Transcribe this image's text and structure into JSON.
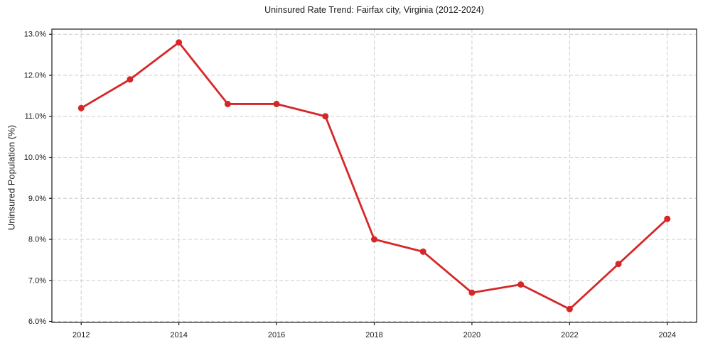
{
  "chart_data": {
    "type": "line",
    "title": "Uninsured Rate Trend: Fairfax city, Virginia (2012-2024)",
    "xlabel": "",
    "ylabel": "Uninsured Population (%)",
    "x": [
      2012,
      2013,
      2014,
      2015,
      2016,
      2017,
      2018,
      2019,
      2020,
      2021,
      2022,
      2023,
      2024
    ],
    "series": [
      {
        "name": "Uninsured Population (%)",
        "values": [
          11.2,
          11.9,
          12.8,
          11.3,
          11.3,
          11.0,
          8.0,
          7.7,
          6.7,
          6.9,
          6.3,
          7.4,
          8.5
        ]
      }
    ],
    "xticks": [
      2012,
      2014,
      2016,
      2018,
      2020,
      2022,
      2024
    ],
    "yticks": [
      6,
      7,
      8,
      9,
      10,
      11,
      12,
      13
    ],
    "ytick_labels": [
      "6.0%",
      "7.0%",
      "8.0%",
      "9.0%",
      "10.0%",
      "11.0%",
      "12.0%",
      "13.0%"
    ],
    "xlim": [
      2011.4,
      2024.6
    ],
    "ylim": [
      5.975,
      13.125
    ],
    "grid": true,
    "grid_style": "dashed",
    "legend": "none",
    "line_color": "#d62728",
    "marker": "circle",
    "marker_size": 4.5,
    "line_width": 2.8,
    "background": "#ffffff",
    "text_color": "#1a1a1a",
    "grid_color": "#cccccc"
  }
}
